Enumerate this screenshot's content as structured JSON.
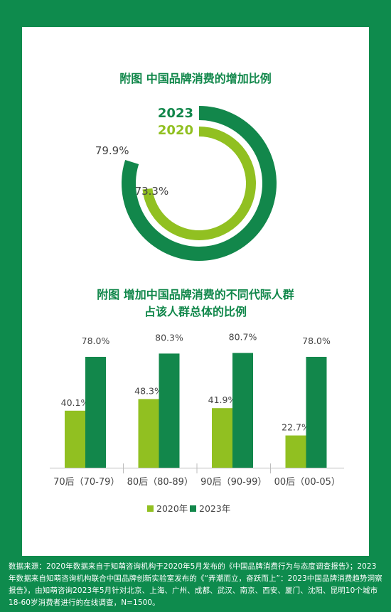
{
  "colors": {
    "dark": "#12874b",
    "light": "#91c021",
    "background": "#0e8b4d",
    "text": "#444444"
  },
  "chart_data": [
    {
      "type": "pie",
      "title": "附图 中国品牌消费的增加比例",
      "series": [
        {
          "name": "2023",
          "value": 79.9,
          "label": "79.9%"
        },
        {
          "name": "2020",
          "value": 73.3,
          "label": "73.3%"
        }
      ]
    },
    {
      "type": "bar",
      "title_line1": "附图 增加中国品牌消费的不同代际人群",
      "title_line2": "占该人群总体的比例",
      "categories": [
        "70后（70-79）",
        "80后（80-89）",
        "90后（90-99）",
        "00后（00-05）"
      ],
      "series": [
        {
          "name": "2020年",
          "values": [
            40.1,
            48.3,
            41.9,
            22.7
          ],
          "labels": [
            "40.1%",
            "48.3%",
            "41.9%",
            "22.7%"
          ]
        },
        {
          "name": "2023年",
          "values": [
            78.0,
            80.3,
            80.7,
            78.0
          ],
          "labels": [
            "78.0%",
            "80.3%",
            "80.7%",
            "78.0%"
          ]
        }
      ],
      "ylim": [
        0,
        100
      ],
      "legend_position": "bottom"
    }
  ],
  "source": "数据来源：2020年数据来自于知萌咨询机构于2020年5月发布的《中国品牌消费行为与态度调查报告》；2023年数据来自知萌咨询机构联合中国品牌创新实验室发布的《“弄潮而立，奋跃而上”：2023中国品牌消费趋势洞察报告》，由知萌咨询2023年5月针对北京、上海、广州、成都、武汉、南京、西安、厦门、沈阳、昆明10个城市18-60岁消费者进行的在线调查，N=1500。"
}
